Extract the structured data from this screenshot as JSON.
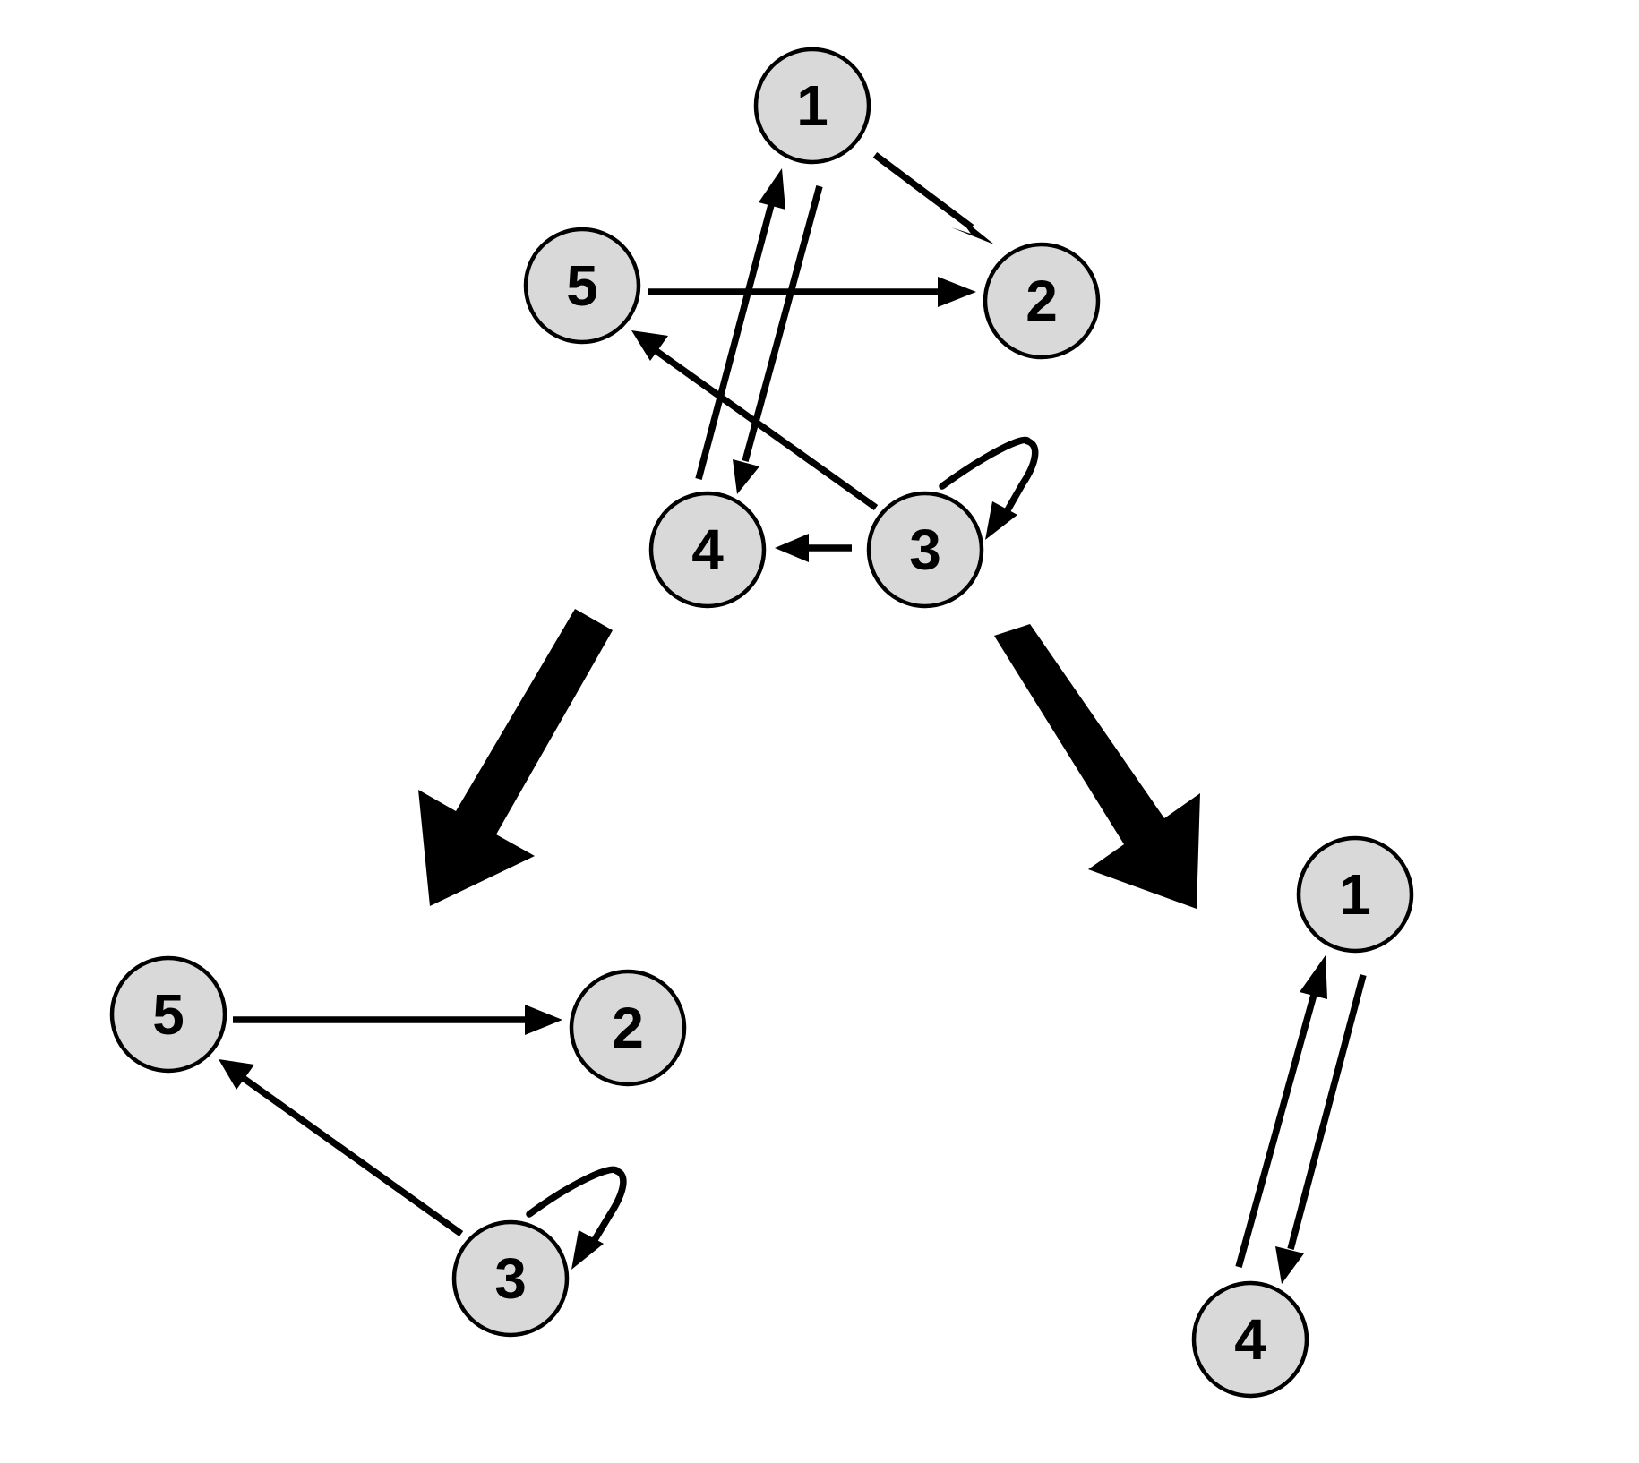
{
  "graphs": [
    {
      "id": "top-graph",
      "nodes": [
        {
          "id": "t1",
          "label": "1"
        },
        {
          "id": "t5",
          "label": "5"
        },
        {
          "id": "t2",
          "label": "2"
        },
        {
          "id": "t4",
          "label": "4"
        },
        {
          "id": "t3",
          "label": "3"
        }
      ],
      "edges": [
        {
          "from": "1",
          "to": "2"
        },
        {
          "from": "5",
          "to": "2"
        },
        {
          "from": "4",
          "to": "1"
        },
        {
          "from": "1",
          "to": "4"
        },
        {
          "from": "3",
          "to": "5"
        },
        {
          "from": "3",
          "to": "4"
        },
        {
          "from": "3",
          "to": "3"
        }
      ]
    },
    {
      "id": "bottom-left-graph",
      "nodes": [
        {
          "id": "l5",
          "label": "5"
        },
        {
          "id": "l2",
          "label": "2"
        },
        {
          "id": "l3",
          "label": "3"
        }
      ],
      "edges": [
        {
          "from": "5",
          "to": "2"
        },
        {
          "from": "3",
          "to": "5"
        },
        {
          "from": "3",
          "to": "3"
        }
      ]
    },
    {
      "id": "bottom-right-graph",
      "nodes": [
        {
          "id": "r1",
          "label": "1"
        },
        {
          "id": "r4",
          "label": "4"
        }
      ],
      "edges": [
        {
          "from": "4",
          "to": "1"
        },
        {
          "from": "1",
          "to": "4"
        }
      ]
    }
  ],
  "colors": {
    "node_fill": "#d9d9d9",
    "stroke": "#000000",
    "background": "#ffffff"
  }
}
